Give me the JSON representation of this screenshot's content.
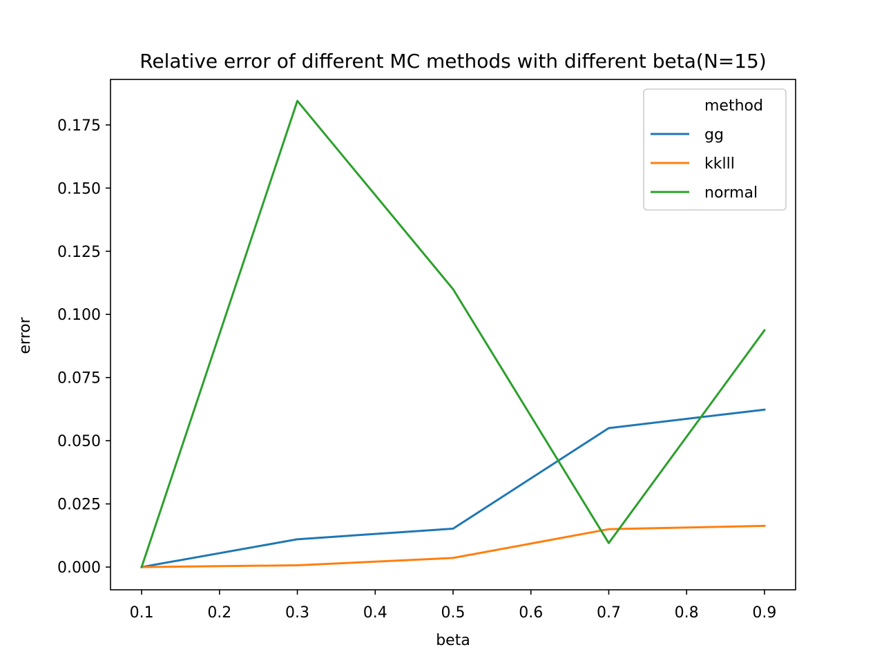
{
  "chart_data": {
    "type": "line",
    "title": "Relative error of different MC methods with different beta(N=15)",
    "xlabel": "beta",
    "ylabel": "error",
    "x": [
      0.1,
      0.3,
      0.5,
      0.7,
      0.9
    ],
    "xlim": [
      0.06,
      0.94
    ],
    "ylim": [
      -0.009,
      0.193
    ],
    "xticks": [
      "0.1",
      "0.2",
      "0.3",
      "0.4",
      "0.5",
      "0.6",
      "0.7",
      "0.8",
      "0.9"
    ],
    "yticks": [
      "0.000",
      "0.025",
      "0.050",
      "0.075",
      "0.100",
      "0.125",
      "0.150",
      "0.175"
    ],
    "grid": false,
    "legend": {
      "title": "method",
      "placement": "top-right"
    },
    "series": [
      {
        "name": "gg",
        "color": "#1f77b4",
        "values": [
          0.0,
          0.011,
          0.0152,
          0.055,
          0.0623
        ]
      },
      {
        "name": "kklll",
        "color": "#ff7f0e",
        "values": [
          0.0,
          0.0007,
          0.0036,
          0.015,
          0.0163
        ]
      },
      {
        "name": "normal",
        "color": "#2ca02c",
        "values": [
          0.0,
          0.1845,
          0.11,
          0.0095,
          0.0937
        ]
      }
    ]
  }
}
